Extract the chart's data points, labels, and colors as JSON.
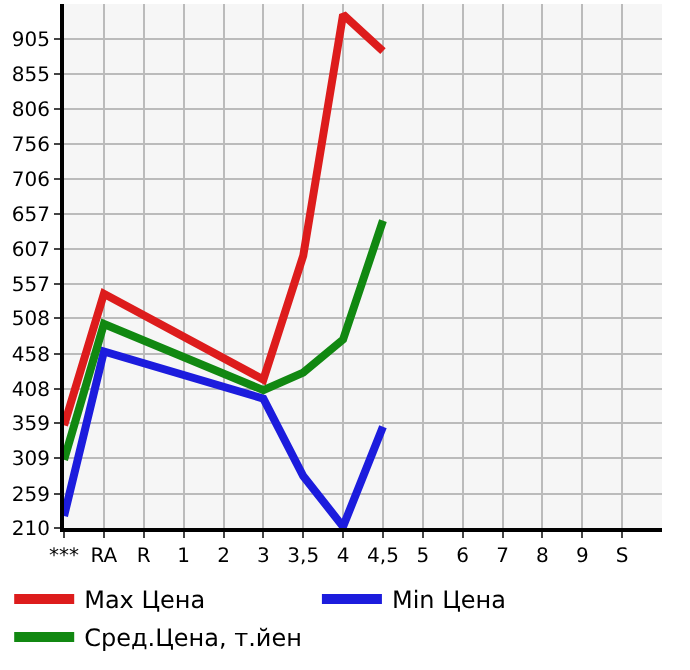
{
  "chart_data": {
    "type": "line",
    "categories": [
      "***",
      "RA",
      "R",
      "1",
      "2",
      "3",
      "3,5",
      "4",
      "4,5",
      "5",
      "6",
      "7",
      "8",
      "9",
      "S"
    ],
    "series": [
      {
        "name": "Max Цена",
        "color": "#dd1c1c",
        "values": [
          356,
          543,
          null,
          null,
          null,
          421,
          597,
          940,
          888,
          null,
          null,
          null,
          null,
          null,
          null
        ]
      },
      {
        "name": "Min Цена",
        "color": "#1c1cdd",
        "values": [
          227,
          461,
          null,
          null,
          null,
          394,
          284,
          212,
          354,
          null,
          null,
          null,
          null,
          null,
          null
        ]
      },
      {
        "name": "Сред.Цена, т.йен",
        "color": "#118811",
        "values": [
          307,
          500,
          null,
          null,
          null,
          406,
          431,
          478,
          647,
          null,
          null,
          null,
          null,
          null,
          null
        ]
      }
    ],
    "ylim": [
      210,
      955
    ],
    "yticks": [
      210,
      259,
      309,
      359,
      408,
      458,
      508,
      557,
      607,
      657,
      706,
      756,
      806,
      855,
      905
    ],
    "grid": true,
    "legend": "bottom",
    "marker": "none",
    "line_style": "solid"
  }
}
